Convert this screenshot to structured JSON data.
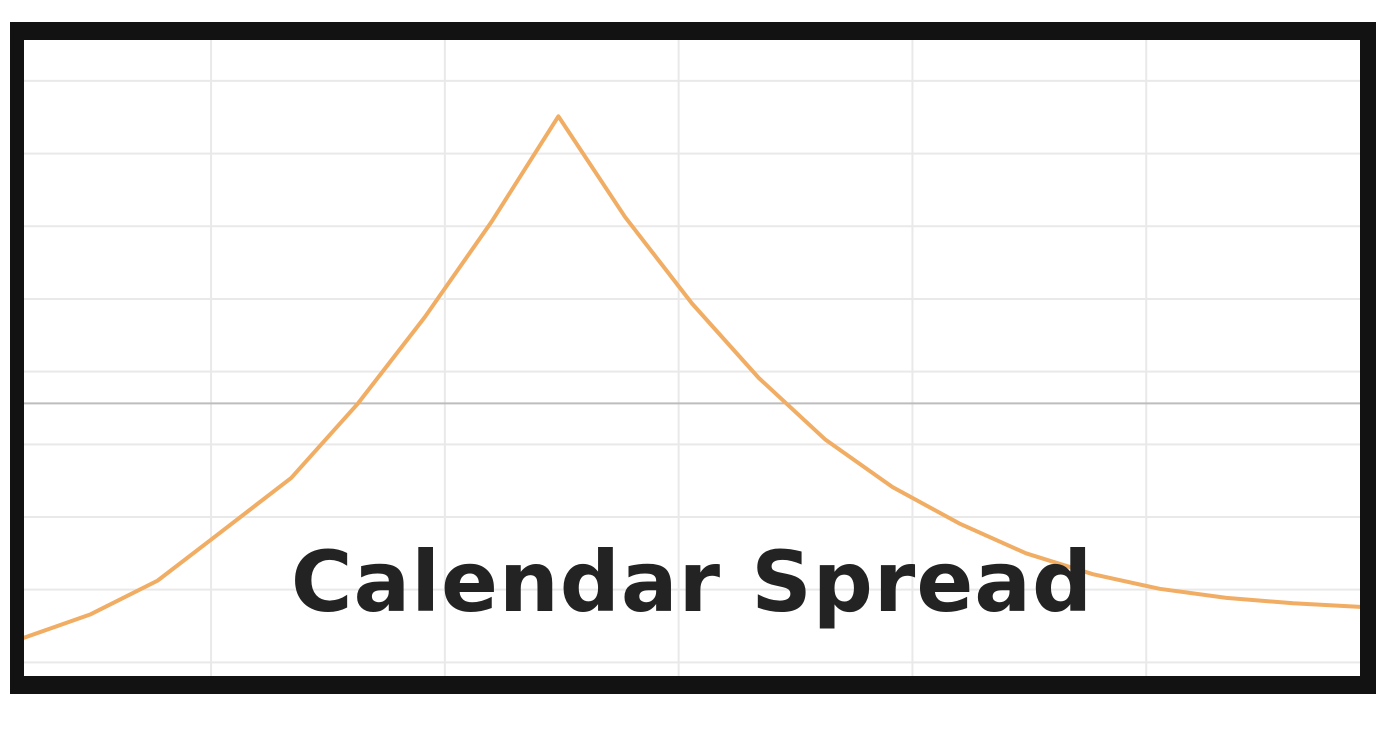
{
  "chart_data": {
    "type": "line",
    "title": "Calendar Spread",
    "xlabel": "",
    "ylabel": "",
    "xlim": [
      0,
      100
    ],
    "ylim": [
      -3,
      4
    ],
    "grid": true,
    "zero_line": true,
    "series": [
      {
        "color": "#f0ad63",
        "x": [
          0,
          5,
          10,
          14,
          20,
          25,
          30,
          35,
          40,
          45,
          50,
          55,
          60,
          65,
          70,
          75,
          80,
          85,
          90,
          95,
          100
        ],
        "y": [
          -2.58,
          -2.32,
          -1.95,
          -1.5,
          -0.82,
          0.0,
          0.95,
          2.0,
          3.16,
          2.05,
          1.1,
          0.28,
          -0.4,
          -0.92,
          -1.32,
          -1.65,
          -1.88,
          -2.04,
          -2.14,
          -2.2,
          -2.24
        ]
      }
    ]
  },
  "colors": {
    "frame": "#121212",
    "grid": "#e9e9e9",
    "zero_line": "#bdbdbd",
    "line": "#f0ad63",
    "title": "#232323"
  }
}
